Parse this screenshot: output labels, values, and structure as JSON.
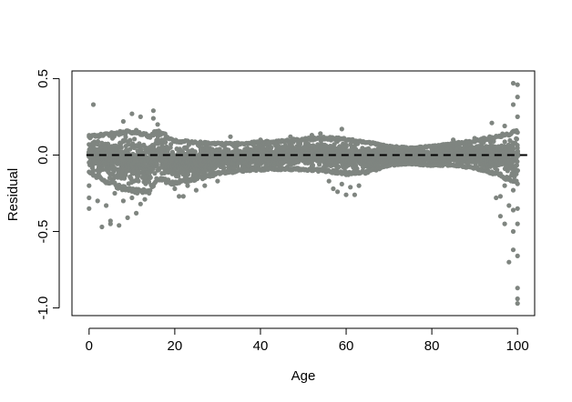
{
  "chart_data": {
    "type": "scatter",
    "title": "",
    "xlabel": "Age",
    "ylabel": "Residual",
    "xlim": [
      -4,
      104
    ],
    "ylim": [
      -1.05,
      0.55
    ],
    "x_ticks": [
      0,
      20,
      40,
      60,
      80,
      100
    ],
    "x_tick_labels": [
      "0",
      "20",
      "40",
      "60",
      "80",
      "100"
    ],
    "y_ticks": [
      0.5,
      0.0,
      -0.5,
      -1.0
    ],
    "y_tick_labels": [
      "0.5",
      "0.0",
      "-0.5",
      "-1.0"
    ],
    "grid": false,
    "legend": "none",
    "point_color": "#7f8580",
    "reference_line": {
      "y": 0,
      "style": "dashed",
      "color": "#000000"
    },
    "series": [
      {
        "points": [
          [
            0,
            0.12
          ],
          [
            0,
            -0.35
          ],
          [
            0,
            -0.28
          ],
          [
            0,
            -0.2
          ],
          [
            1,
            0.33
          ],
          [
            1,
            -0.1
          ],
          [
            2,
            -0.3
          ],
          [
            3,
            -0.47
          ],
          [
            4,
            -0.33
          ],
          [
            5,
            -0.45
          ],
          [
            5,
            -0.43
          ],
          [
            6,
            -0.25
          ],
          [
            7,
            -0.46
          ],
          [
            8,
            -0.3
          ],
          [
            8,
            0.22
          ],
          [
            9,
            -0.41
          ],
          [
            10,
            -0.28
          ],
          [
            10,
            0.27
          ],
          [
            11,
            -0.38
          ],
          [
            12,
            -0.32
          ],
          [
            12,
            0.25
          ],
          [
            13,
            -0.29
          ],
          [
            13,
            -0.15
          ],
          [
            14,
            -0.25
          ],
          [
            15,
            0.29
          ],
          [
            15,
            0.24
          ],
          [
            15,
            -0.02
          ],
          [
            16,
            0.2
          ],
          [
            16,
            -0.1
          ],
          [
            17,
            -0.12
          ],
          [
            20,
            -0.22
          ],
          [
            21,
            -0.27
          ],
          [
            22,
            -0.27
          ],
          [
            23,
            -0.2
          ],
          [
            25,
            -0.23
          ],
          [
            27,
            -0.2
          ],
          [
            30,
            -0.17
          ],
          [
            33,
            0.12
          ],
          [
            40,
            0.1
          ],
          [
            47,
            0.12
          ],
          [
            52,
            0.13
          ],
          [
            54,
            0.14
          ],
          [
            56,
            -0.17
          ],
          [
            57,
            -0.22
          ],
          [
            58,
            -0.24
          ],
          [
            59,
            -0.19
          ],
          [
            60,
            -0.26
          ],
          [
            61,
            -0.21
          ],
          [
            62,
            -0.26
          ],
          [
            63,
            -0.2
          ],
          [
            59,
            0.17
          ],
          [
            85,
            0.1
          ],
          [
            90,
            0.11
          ],
          [
            94,
            0.21
          ],
          [
            95,
            -0.28
          ],
          [
            96,
            -0.4
          ],
          [
            96,
            -0.27
          ],
          [
            97,
            -0.45
          ],
          [
            97,
            -0.2
          ],
          [
            97,
            0.19
          ],
          [
            98,
            -0.7
          ],
          [
            98,
            -0.33
          ],
          [
            99,
            -0.5
          ],
          [
            99,
            -0.62
          ],
          [
            99,
            -0.36
          ],
          [
            99,
            -0.23
          ],
          [
            99,
            0.47
          ],
          [
            99,
            0.33
          ],
          [
            100,
            -0.87
          ],
          [
            100,
            -0.97
          ],
          [
            100,
            -0.94
          ],
          [
            100,
            0.46
          ],
          [
            100,
            0.38
          ],
          [
            100,
            0.25
          ],
          [
            100,
            -0.66
          ],
          [
            100,
            -0.45
          ],
          [
            100,
            -0.35
          ]
        ]
      }
    ],
    "band": {
      "x_from": 0,
      "x_to": 100,
      "upper_x": [
        0,
        2,
        5,
        8,
        11,
        14,
        16,
        20,
        25,
        30,
        35,
        40,
        45,
        50,
        55,
        60,
        65,
        70,
        75,
        80,
        85,
        90,
        95,
        98,
        100
      ],
      "upper_y": [
        0.13,
        0.14,
        0.15,
        0.16,
        0.17,
        0.13,
        0.17,
        0.1,
        0.09,
        0.08,
        0.08,
        0.09,
        0.1,
        0.11,
        0.12,
        0.11,
        0.09,
        0.06,
        0.05,
        0.06,
        0.08,
        0.1,
        0.13,
        0.15,
        0.17
      ],
      "lower_y": [
        -0.12,
        -0.16,
        -0.2,
        -0.24,
        -0.25,
        -0.25,
        -0.17,
        -0.2,
        -0.17,
        -0.13,
        -0.11,
        -0.1,
        -0.1,
        -0.1,
        -0.11,
        -0.13,
        -0.12,
        -0.07,
        -0.06,
        -0.07,
        -0.07,
        -0.09,
        -0.13,
        -0.17,
        -0.2
      ]
    }
  }
}
